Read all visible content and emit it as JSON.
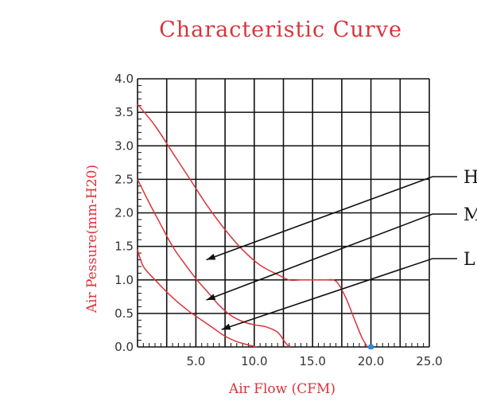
{
  "page": {
    "title": "Characteristic Curve"
  },
  "chart_data": {
    "type": "line",
    "title": "Characteristic Curve",
    "xlabel": "Air Flow (CFM)",
    "ylabel": "Air Pessure(mm-H20)",
    "xlim": [
      0,
      25
    ],
    "ylim": [
      0,
      4
    ],
    "x_ticks": [
      5,
      10,
      15,
      20,
      25
    ],
    "x_tick_labels": [
      "5.0",
      "10.0",
      "15.0",
      "20.0",
      "25.0"
    ],
    "y_ticks": [
      0,
      0.5,
      1,
      1.5,
      2,
      2.5,
      3,
      3.5,
      4
    ],
    "y_tick_labels": [
      "0.0",
      "0.5",
      "1.0",
      "1.5",
      "2.0",
      "2.5",
      "3.0",
      "3.5",
      "4.0"
    ],
    "grid": true,
    "legend_position": "right",
    "colors": {
      "curve": "#d9343a",
      "grid": "#111111",
      "marker": "#2f8be0"
    },
    "series": [
      {
        "name": "H",
        "x": [
          0,
          1.5,
          3,
          4.5,
          6,
          7.5,
          9,
          10.5,
          12,
          13,
          14,
          15,
          16,
          17,
          17.8,
          18.5,
          19.2,
          19.7
        ],
        "y": [
          3.62,
          3.3,
          2.9,
          2.5,
          2.1,
          1.75,
          1.45,
          1.22,
          1.08,
          1.0,
          1.0,
          1.0,
          1.0,
          0.98,
          0.75,
          0.45,
          0.15,
          0.0
        ]
      },
      {
        "name": "M",
        "x": [
          0,
          1,
          2,
          3,
          4,
          5,
          6,
          7,
          8,
          9,
          10,
          11,
          12,
          12.6,
          13
        ],
        "y": [
          2.5,
          2.15,
          1.82,
          1.5,
          1.25,
          1.02,
          0.82,
          0.62,
          0.47,
          0.38,
          0.33,
          0.3,
          0.22,
          0.08,
          0.0
        ]
      },
      {
        "name": "L",
        "x": [
          0,
          0.5,
          1.5,
          2.5,
          3.5,
          4.5,
          5.5,
          6.5,
          7.5,
          8.5,
          9.5,
          10.2
        ],
        "y": [
          1.45,
          1.2,
          1.0,
          0.82,
          0.66,
          0.52,
          0.4,
          0.28,
          0.16,
          0.08,
          0.03,
          0.0
        ]
      }
    ],
    "legend_entries": [
      "H",
      "M",
      "L"
    ],
    "annotations": [
      {
        "series": "H",
        "label": "H",
        "arrow_tip": [
          5.9,
          1.3
        ]
      },
      {
        "series": "M",
        "label": "M",
        "arrow_tip": [
          5.9,
          0.7
        ]
      },
      {
        "series": "L",
        "label": "L",
        "arrow_tip": [
          7.2,
          0.26
        ]
      }
    ],
    "markers": [
      {
        "x": 20,
        "y": 0
      }
    ]
  }
}
